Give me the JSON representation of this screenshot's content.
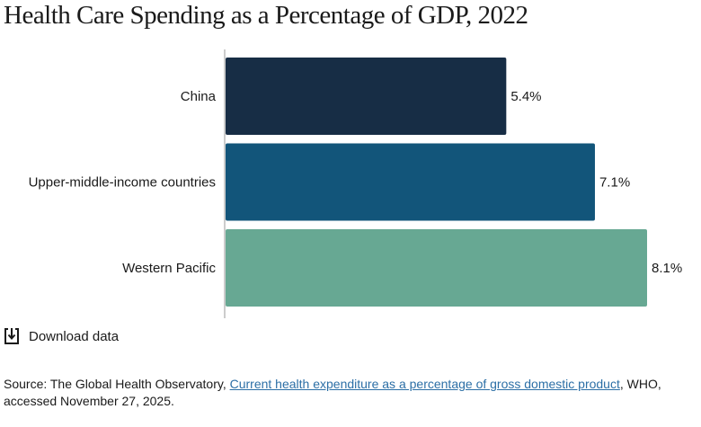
{
  "chart_data": {
    "type": "bar",
    "orientation": "horizontal",
    "title": "Health Care Spending as a Percentage of GDP, 2022",
    "categories": [
      "China",
      "Upper-middle-income countries",
      "Western Pacific"
    ],
    "values": [
      5.4,
      7.1,
      8.1
    ],
    "value_labels": [
      "5.4%",
      "7.1%",
      "8.1%"
    ],
    "colors": [
      "#172d45",
      "#12557a",
      "#67a893"
    ],
    "xlim": [
      0,
      8.1
    ],
    "grid": false,
    "legend": "none"
  },
  "download": {
    "label": "Download data",
    "icon": "download-icon"
  },
  "source": {
    "prefix": "Source: The Global Health Observatory, ",
    "link_text": "Current health expenditure as a percentage of gross domestic product",
    "suffix": ", WHO, accessed November 27, 2025."
  }
}
